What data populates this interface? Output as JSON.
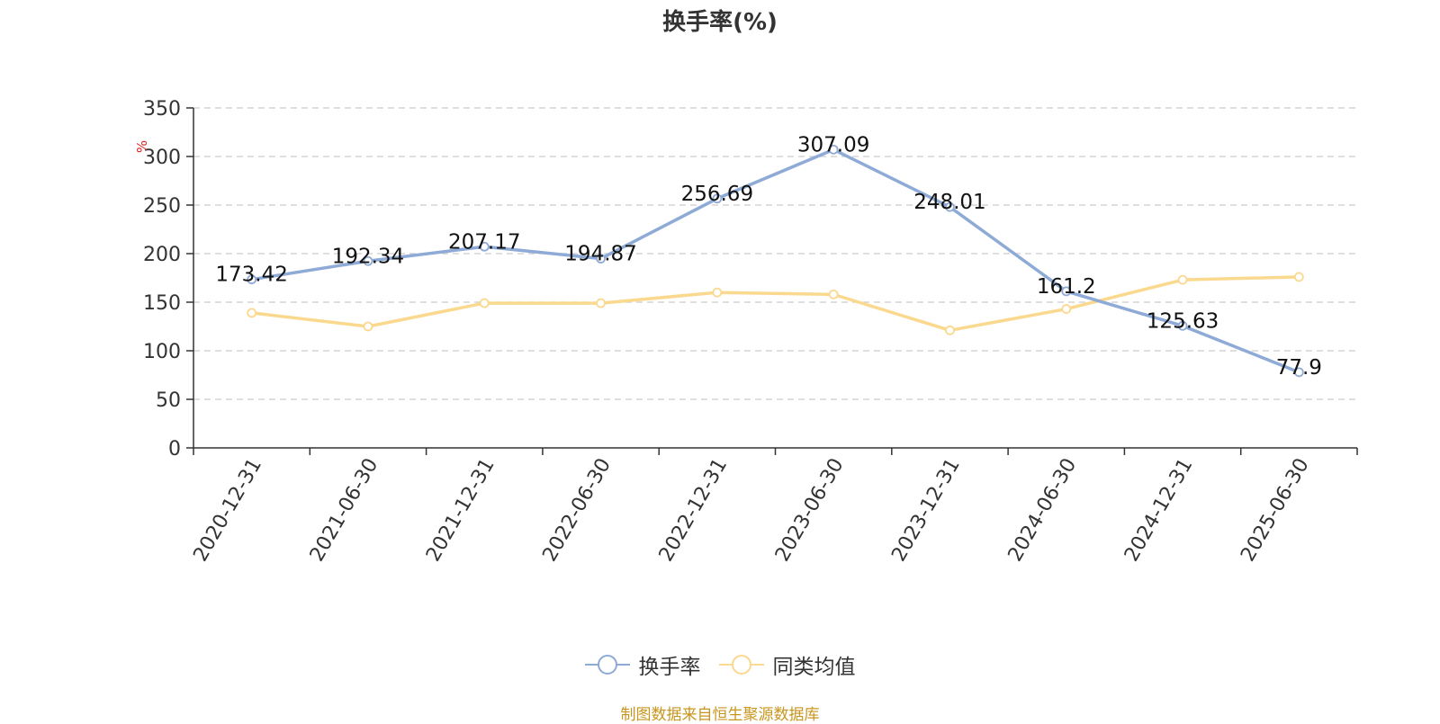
{
  "chart_data": {
    "type": "line",
    "title": "换手率(%)",
    "ylabel": "%",
    "ylim": [
      0,
      350
    ],
    "yticks": [
      0,
      50,
      100,
      150,
      200,
      250,
      300,
      350
    ],
    "grid": true,
    "legend_position": "bottom-center",
    "categories": [
      "2020-12-31",
      "2021-06-30",
      "2021-12-31",
      "2022-06-30",
      "2022-12-31",
      "2023-06-30",
      "2023-12-31",
      "2024-06-30",
      "2024-12-31",
      "2025-06-30"
    ],
    "series": [
      {
        "name": "换手率",
        "color": "#8eaad6",
        "values": [
          173.42,
          192.34,
          207.17,
          194.87,
          256.69,
          307.09,
          248.01,
          161.2,
          125.63,
          77.9
        ],
        "labels": [
          "173.42",
          "192.34",
          "207.17",
          "194.87",
          "256.69",
          "307.09",
          "248.01",
          "161.2",
          "125.63",
          "77.9"
        ]
      },
      {
        "name": "同类均值",
        "color": "#fad98f",
        "values": [
          139,
          125,
          149,
          149,
          160,
          158,
          121,
          143,
          173,
          176
        ]
      }
    ]
  },
  "source_text": "制图数据来自恒生聚源数据库",
  "colors": {
    "axis": "#333333",
    "grid": "#cccccc",
    "ylabel": "#e02020",
    "source": "#c8961e"
  }
}
